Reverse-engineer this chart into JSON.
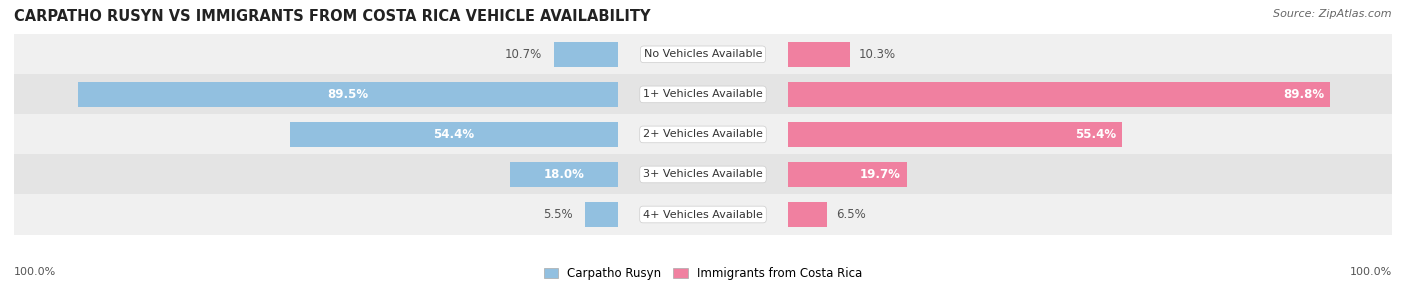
{
  "title": "CARPATHO RUSYN VS IMMIGRANTS FROM COSTA RICA VEHICLE AVAILABILITY",
  "source": "Source: ZipAtlas.com",
  "categories": [
    "No Vehicles Available",
    "1+ Vehicles Available",
    "2+ Vehicles Available",
    "3+ Vehicles Available",
    "4+ Vehicles Available"
  ],
  "left_values": [
    10.7,
    89.5,
    54.4,
    18.0,
    5.5
  ],
  "right_values": [
    10.3,
    89.8,
    55.4,
    19.7,
    6.5
  ],
  "left_color": "#92C0E0",
  "right_color": "#F080A0",
  "left_label_inside_color": "#ffffff",
  "left_label_outside_color": "#555555",
  "right_label_outside_color": "#555555",
  "left_label": "Carpatho Rusyn",
  "right_label": "Immigrants from Costa Rica",
  "bar_height": 0.62,
  "row_bg_light": "#f0f0f0",
  "row_bg_dark": "#e4e4e4",
  "xlim": 100,
  "title_fontsize": 10.5,
  "source_fontsize": 8,
  "value_fontsize": 8.5,
  "cat_fontsize": 8,
  "tick_fontsize": 8,
  "legend_fontsize": 8.5
}
